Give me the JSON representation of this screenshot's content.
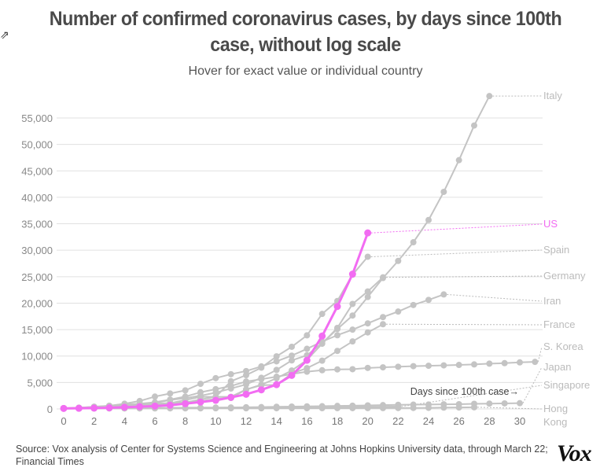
{
  "header": {
    "title_line1": "Number of confirmed coronavirus cases, by days since 100th",
    "title_line2": "case, without log scale",
    "subtitle": "Hover for exact value or individual country"
  },
  "footer": {
    "source": "Source: Vox analysis of Center for Systems Science and Engineering at Johns Hopkins University data, through March 22; Financial Times",
    "logo": "Vox"
  },
  "colors": {
    "highlight": "#f26cf2",
    "default": "#c4c4c4",
    "grid": "#e0e0e0",
    "tick_text": "#888888",
    "label_text": "#bbbbbb"
  },
  "chart_data": {
    "type": "line",
    "title": "Number of confirmed coronavirus cases, by days since 100th case, without log scale",
    "subtitle": "Hover for exact value or individual country",
    "xlabel": "Days since 100th case",
    "xlabel_arrow": "→",
    "ylabel": "",
    "xlim": [
      0,
      31
    ],
    "ylim": [
      0,
      59000
    ],
    "xticks": [
      0,
      2,
      4,
      6,
      8,
      10,
      12,
      14,
      16,
      18,
      20,
      22,
      24,
      26,
      28,
      30
    ],
    "yticks": [
      0,
      5000,
      10000,
      15000,
      20000,
      25000,
      30000,
      35000,
      40000,
      45000,
      50000,
      55000
    ],
    "ytick_labels": [
      "0",
      "5,000",
      "10,000",
      "15,000",
      "20,000",
      "25,000",
      "30,000",
      "35,000",
      "40,000",
      "45,000",
      "50,000",
      "55,000"
    ],
    "grid": true,
    "legend": "direct labels at right",
    "highlight_series": "US",
    "series": [
      {
        "name": "Italy",
        "label_value": 59000,
        "values": [
          155,
          229,
          322,
          453,
          655,
          888,
          1128,
          1694,
          2036,
          2502,
          3089,
          3858,
          4636,
          5883,
          7375,
          9172,
          10149,
          12462,
          15113,
          17660,
          21157,
          24747,
          27980,
          31506,
          35713,
          41035,
          47021,
          53578,
          59138
        ]
      },
      {
        "name": "US",
        "label_value": 35000,
        "values": [
          100,
          124,
          158,
          221,
          319,
          435,
          541,
          704,
          994,
          1301,
          1630,
          2183,
          2770,
          3613,
          4596,
          6344,
          9197,
          13779,
          19367,
          25489,
          33272
        ]
      },
      {
        "name": "Spain",
        "label_value": 30000,
        "values": [
          114,
          151,
          198,
          257,
          374,
          500,
          673,
          1073,
          1695,
          2277,
          2277,
          5232,
          6391,
          7798,
          9942,
          11748,
          13910,
          17963,
          20410,
          25374,
          28768
        ]
      },
      {
        "name": "Germany",
        "label_value": 25000,
        "values": [
          130,
          159,
          196,
          262,
          482,
          670,
          799,
          1040,
          1176,
          1457,
          1908,
          2078,
          3675,
          4585,
          5795,
          7272,
          9257,
          12327,
          15320,
          19848,
          22213,
          24873
        ]
      },
      {
        "name": "Iran",
        "label_value": 20000,
        "values": [
          139,
          245,
          388,
          593,
          978,
          1501,
          2336,
          2922,
          3513,
          4747,
          5823,
          6566,
          7161,
          8042,
          9000,
          10075,
          11364,
          12729,
          13938,
          14991,
          16169,
          17361,
          18407,
          19644,
          20610,
          21638
        ]
      },
      {
        "name": "France",
        "label_value": 15000,
        "values": [
          130,
          191,
          204,
          288,
          380,
          656,
          959,
          1136,
          1219,
          1794,
          2293,
          2293,
          3681,
          4496,
          4532,
          6683,
          7715,
          9124,
          10970,
          12758,
          14463,
          16018
        ]
      },
      {
        "name": "S. Korea",
        "label_value": 11000,
        "values": [
          104,
          204,
          433,
          602,
          833,
          977,
          1261,
          1766,
          2337,
          3150,
          3736,
          4335,
          5186,
          5621,
          6088,
          6593,
          7041,
          7314,
          7478,
          7513,
          7755,
          7869,
          7979,
          8086,
          8162,
          8236,
          8320,
          8413,
          8565,
          8652,
          8799,
          8897
        ]
      },
      {
        "name": "Japan",
        "label_value": 7000,
        "values": [
          105,
          132,
          144,
          144,
          163,
          186,
          210,
          230,
          239,
          254,
          268,
          284,
          317,
          349,
          408,
          455,
          488,
          514,
          568,
          620,
          675,
          716,
          780,
          814,
          829,
          873,
          900,
          964,
          1007,
          1046,
          1089
        ]
      },
      {
        "name": "Singapore",
        "label_value": 3700,
        "values": [
          102,
          106,
          108,
          110,
          110,
          117,
          130,
          138,
          150,
          150,
          160,
          178,
          178,
          200,
          212,
          226,
          243,
          266,
          313,
          345,
          385,
          432,
          455
        ]
      },
      {
        "name": "Hong Kong",
        "label_value": 0,
        "values": [
          100,
          105,
          105,
          107,
          108,
          109,
          110,
          114,
          115,
          120,
          126,
          129,
          131,
          132,
          138,
          141,
          145,
          149,
          155,
          157,
          158,
          162,
          176,
          192,
          208,
          256,
          273,
          317
        ]
      }
    ]
  }
}
